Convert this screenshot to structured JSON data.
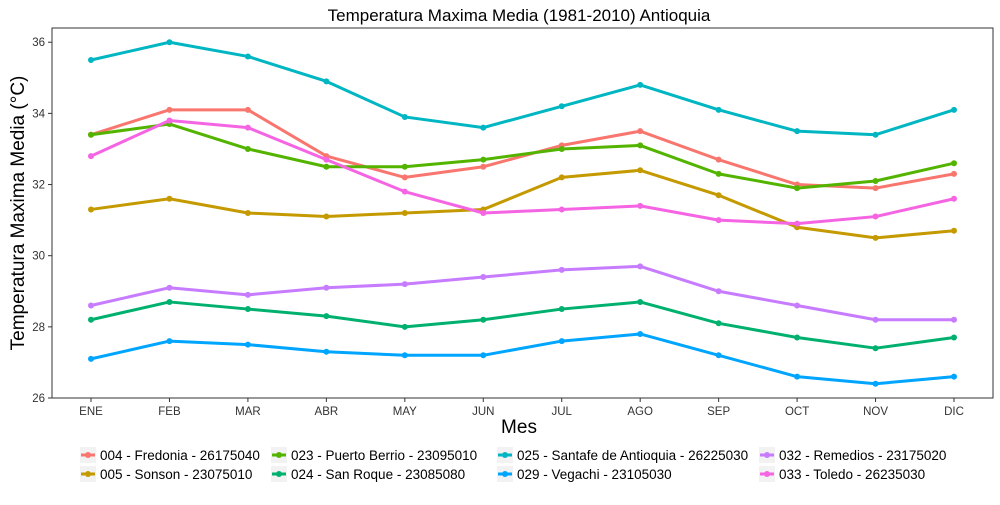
{
  "chart_data": {
    "type": "line",
    "title": "Temperatura Maxima Media (1981-2010)  Antioquia",
    "xlabel": "Mes",
    "ylabel": "Temperatura Maxima Media  (°C)",
    "categories": [
      "ENE",
      "FEB",
      "MAR",
      "ABR",
      "MAY",
      "JUN",
      "JUL",
      "AGO",
      "SEP",
      "OCT",
      "NOV",
      "DIC"
    ],
    "ylim": [
      26,
      36.4
    ],
    "yticks": [
      26,
      28,
      30,
      32,
      34,
      36
    ],
    "grid": false,
    "legend_position": "bottom",
    "series": [
      {
        "name": "004 - Fredonia - 26175040",
        "color": "#F8766D",
        "values": [
          33.4,
          34.1,
          34.1,
          32.8,
          32.2,
          32.5,
          33.1,
          33.5,
          32.7,
          32.0,
          31.9,
          32.3
        ]
      },
      {
        "name": "005 - Sonson - 23075010",
        "color": "#C49A00",
        "values": [
          31.3,
          31.6,
          31.2,
          31.1,
          31.2,
          31.3,
          32.2,
          32.4,
          31.7,
          30.8,
          30.5,
          30.7
        ]
      },
      {
        "name": "023 - Puerto Berrio - 23095010",
        "color": "#53B400",
        "values": [
          33.4,
          33.7,
          33.0,
          32.5,
          32.5,
          32.7,
          33.0,
          33.1,
          32.3,
          31.9,
          32.1,
          32.6
        ]
      },
      {
        "name": "024 - San Roque - 23085080",
        "color": "#00B06F",
        "values": [
          28.2,
          28.7,
          28.5,
          28.3,
          28.0,
          28.2,
          28.5,
          28.7,
          28.1,
          27.7,
          27.4,
          27.7
        ]
      },
      {
        "name": "025 - Santafe de Antioquia - 26225030",
        "color": "#00B6C2",
        "values": [
          35.5,
          36.0,
          35.6,
          34.9,
          33.9,
          33.6,
          34.2,
          34.8,
          34.1,
          33.5,
          33.4,
          34.1
        ]
      },
      {
        "name": "029 - Vegachi - 23105030",
        "color": "#00A5FF",
        "values": [
          27.1,
          27.6,
          27.5,
          27.3,
          27.2,
          27.2,
          27.6,
          27.8,
          27.2,
          26.6,
          26.4,
          26.6
        ]
      },
      {
        "name": "032 - Remedios - 23175020",
        "color": "#C77CFF",
        "values": [
          28.6,
          29.1,
          28.9,
          29.1,
          29.2,
          29.4,
          29.6,
          29.7,
          29.0,
          28.6,
          28.2,
          28.2
        ]
      },
      {
        "name": "033 - Toledo - 26235030",
        "color": "#F564E3",
        "values": [
          32.8,
          33.8,
          33.6,
          32.7,
          31.8,
          31.2,
          31.3,
          31.4,
          31.0,
          30.9,
          31.1,
          31.6
        ]
      }
    ]
  }
}
